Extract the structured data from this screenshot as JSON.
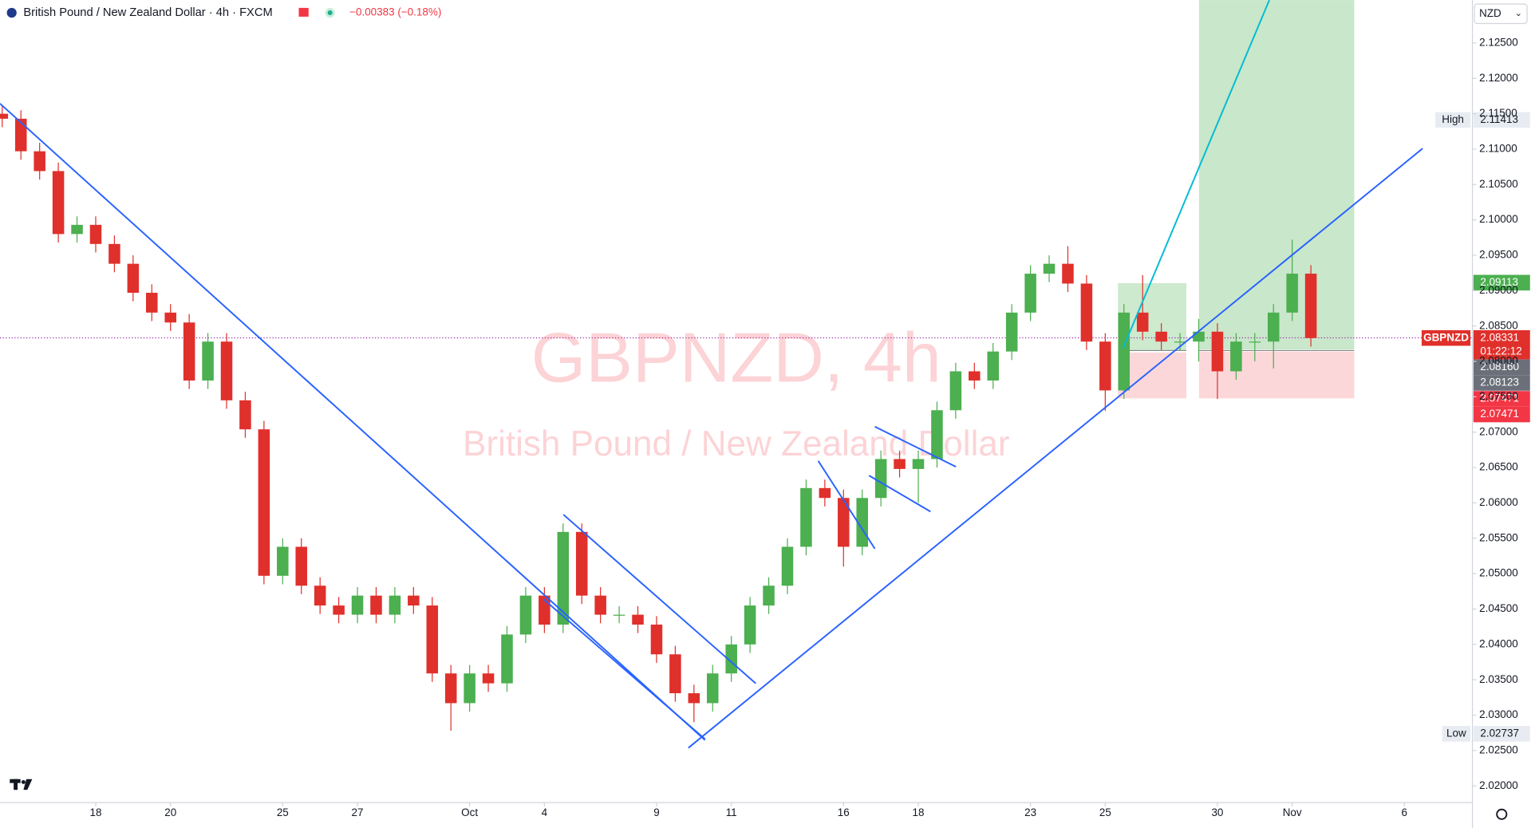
{
  "header": {
    "symbol": "British Pound / New Zealand Dollar · 4h · FXCM",
    "change": "−0.00383 (−0.18%)"
  },
  "currency": "NZD",
  "chart_data": {
    "type": "candlestick",
    "watermark": "GBPNZD, 4h",
    "watermark_subtitle": "British Pound / New Zealand Dollar",
    "up_color": "#4caf50",
    "down_color": "#e0302b",
    "x": [
      -2.5,
      -2,
      -1.5,
      -1,
      -0.5,
      0,
      0.5,
      1,
      1.5,
      2,
      2.5,
      3,
      3.5,
      4,
      4.5,
      5,
      5.5,
      6,
      6.5,
      7,
      7.5,
      8,
      8.5,
      9,
      9.5,
      10,
      10.5,
      11,
      11.5,
      12,
      12.5,
      13,
      13.5,
      14,
      14.5,
      15,
      15.5,
      16,
      16.5,
      17,
      17.5,
      18,
      18.5,
      19,
      19.5,
      20,
      20.5,
      21,
      21.5,
      22,
      22.5,
      23,
      23.5,
      24,
      24.5,
      25,
      25.5,
      26,
      26.5,
      27,
      27.5,
      28,
      28.5,
      29,
      29.5,
      30,
      30.5,
      31,
      31.5,
      32,
      32.5
    ],
    "open": [
      2.115,
      2.1143,
      2.1097,
      2.1069,
      2.098,
      2.0993,
      2.0966,
      2.0938,
      2.0897,
      2.0869,
      2.0855,
      2.0773,
      2.0828,
      2.0745,
      2.0704,
      2.0497,
      2.0538,
      2.0483,
      2.0455,
      2.0442,
      2.0469,
      2.0442,
      2.0469,
      2.0455,
      2.0359,
      2.0317,
      2.0359,
      2.0345,
      2.0414,
      2.0469,
      2.0428,
      2.0559,
      2.0469,
      2.0442,
      2.0442,
      2.0428,
      2.0386,
      2.0331,
      2.0317,
      2.0359,
      2.04,
      2.0455,
      2.0483,
      2.0538,
      2.0621,
      2.0607,
      2.0538,
      2.0607,
      2.0662,
      2.0648,
      2.0662,
      2.0731,
      2.0786,
      2.0773,
      2.0814,
      2.0869,
      2.0924,
      2.0938,
      2.091,
      2.0828,
      2.0759,
      2.0869,
      2.0842,
      2.0828,
      2.0828,
      2.0842,
      2.0786,
      2.0828,
      2.0828,
      2.0869,
      2.0924
    ],
    "high": [
      2.1162,
      2.1155,
      2.1109,
      2.1081,
      2.1005,
      2.1005,
      2.0978,
      2.095,
      2.0909,
      2.0881,
      2.0867,
      2.084,
      2.084,
      2.0757,
      2.0716,
      2.055,
      2.055,
      2.0495,
      2.0467,
      2.0481,
      2.0481,
      2.0481,
      2.0481,
      2.0467,
      2.0371,
      2.0371,
      2.0371,
      2.0426,
      2.0481,
      2.0481,
      2.0571,
      2.0571,
      2.0481,
      2.0454,
      2.0454,
      2.044,
      2.0398,
      2.0343,
      2.0371,
      2.0412,
      2.0467,
      2.0495,
      2.055,
      2.0633,
      2.0633,
      2.0619,
      2.0619,
      2.0674,
      2.0674,
      2.0674,
      2.0743,
      2.0798,
      2.0798,
      2.0826,
      2.0881,
      2.0936,
      2.095,
      2.0963,
      2.0922,
      2.084,
      2.0881,
      2.0922,
      2.0854,
      2.084,
      2.086,
      2.0854,
      2.084,
      2.084,
      2.0881,
      2.0972,
      2.0936
    ],
    "low": [
      2.1131,
      2.1085,
      2.1057,
      2.0968,
      2.0968,
      2.0954,
      2.0926,
      2.0885,
      2.0857,
      2.0843,
      2.0761,
      2.0761,
      2.0733,
      2.0692,
      2.0485,
      2.0485,
      2.0471,
      2.0443,
      2.043,
      2.043,
      2.043,
      2.043,
      2.0443,
      2.0347,
      2.0278,
      2.0305,
      2.0333,
      2.0333,
      2.0402,
      2.0416,
      2.0416,
      2.0457,
      2.043,
      2.043,
      2.0416,
      2.0374,
      2.0319,
      2.029,
      2.0305,
      2.0347,
      2.0388,
      2.0443,
      2.0471,
      2.0526,
      2.0595,
      2.051,
      2.0526,
      2.0595,
      2.0636,
      2.06,
      2.065,
      2.0719,
      2.0761,
      2.0761,
      2.0802,
      2.0857,
      2.0912,
      2.0898,
      2.0816,
      2.073,
      2.0747,
      2.083,
      2.0816,
      2.0816,
      2.08,
      2.0747,
      2.0774,
      2.08,
      2.079,
      2.0857,
      2.0821
    ],
    "close": [
      2.1143,
      2.1097,
      2.1069,
      2.098,
      2.0993,
      2.0966,
      2.0938,
      2.0897,
      2.0869,
      2.0855,
      2.0773,
      2.0828,
      2.0745,
      2.0704,
      2.0497,
      2.0538,
      2.0483,
      2.0455,
      2.0442,
      2.0469,
      2.0442,
      2.0469,
      2.0455,
      2.0359,
      2.0317,
      2.0359,
      2.0345,
      2.0414,
      2.0469,
      2.0428,
      2.0559,
      2.0469,
      2.0442,
      2.0442,
      2.0428,
      2.0386,
      2.0331,
      2.0317,
      2.0359,
      2.04,
      2.0455,
      2.0483,
      2.0538,
      2.0621,
      2.0607,
      2.0538,
      2.0607,
      2.0662,
      2.0648,
      2.0662,
      2.0731,
      2.0786,
      2.0773,
      2.0814,
      2.0869,
      2.0924,
      2.0938,
      2.091,
      2.0828,
      2.0759,
      2.0869,
      2.0842,
      2.0828,
      2.0828,
      2.0842,
      2.0786,
      2.0828,
      2.0828,
      2.0869,
      2.0924,
      2.0833
    ],
    "xlim": [
      -2.56,
      36.82
    ],
    "xticks": [
      {
        "value": 0,
        "label": "18"
      },
      {
        "value": 2,
        "label": "20"
      },
      {
        "value": 5,
        "label": "25"
      },
      {
        "value": 7,
        "label": "27"
      },
      {
        "value": 10,
        "label": "Oct"
      },
      {
        "value": 12,
        "label": "4"
      },
      {
        "value": 15,
        "label": "9"
      },
      {
        "value": 17,
        "label": "11"
      },
      {
        "value": 20,
        "label": "16"
      },
      {
        "value": 22,
        "label": "18"
      },
      {
        "value": 25,
        "label": "23"
      },
      {
        "value": 27,
        "label": "25"
      },
      {
        "value": 30,
        "label": "30"
      },
      {
        "value": 32,
        "label": "Nov"
      },
      {
        "value": 35,
        "label": "6"
      }
    ],
    "ylim": [
      2.01765,
      2.13107
    ],
    "yticks": [
      {
        "value": 2.02,
        "label": "2.02000"
      },
      {
        "value": 2.025,
        "label": "2.02500"
      },
      {
        "value": 2.03,
        "label": "2.03000"
      },
      {
        "value": 2.035,
        "label": "2.03500"
      },
      {
        "value": 2.04,
        "label": "2.04000"
      },
      {
        "value": 2.045,
        "label": "2.04500"
      },
      {
        "value": 2.05,
        "label": "2.05000"
      },
      {
        "value": 2.055,
        "label": "2.05500"
      },
      {
        "value": 2.06,
        "label": "2.06000"
      },
      {
        "value": 2.065,
        "label": "2.06500"
      },
      {
        "value": 2.07,
        "label": "2.07000"
      },
      {
        "value": 2.075,
        "label": "2.07500"
      },
      {
        "value": 2.08,
        "label": "2.08000"
      },
      {
        "value": 2.085,
        "label": "2.08500"
      },
      {
        "value": 2.09,
        "label": "2.09000"
      },
      {
        "value": 2.095,
        "label": "2.09500"
      },
      {
        "value": 2.1,
        "label": "2.10000"
      },
      {
        "value": 2.105,
        "label": "2.10500"
      },
      {
        "value": 2.11,
        "label": "2.11000"
      },
      {
        "value": 2.115,
        "label": "2.11500"
      },
      {
        "value": 2.12,
        "label": "2.12000"
      },
      {
        "value": 2.125,
        "label": "2.12500"
      }
    ],
    "price_labels": [
      {
        "value": 2.11413,
        "label": "2.11413",
        "tag": "High",
        "color": "#e8ecf2"
      },
      {
        "value": 2.09113,
        "label": "2.09113",
        "color": "#4caf50"
      },
      {
        "value": 2.08331,
        "label": "2.08331",
        "tag": "GBPNZD",
        "countdown": "01:22:12",
        "color": "#e0302b"
      },
      {
        "value": 2.0816,
        "label": "2.08160",
        "color": "#6b6f7a"
      },
      {
        "value": 2.08123,
        "label": "2.08123",
        "color": "#6b6f7a"
      },
      {
        "value": 2.07471,
        "label": "2.07471",
        "color": "#f23645"
      },
      {
        "value": 2.07471,
        "label": "2.07471",
        "color": "#f23645"
      },
      {
        "value": 2.02737,
        "label": "2.02737",
        "tag": "Low",
        "color": "#e8ecf2"
      }
    ]
  }
}
